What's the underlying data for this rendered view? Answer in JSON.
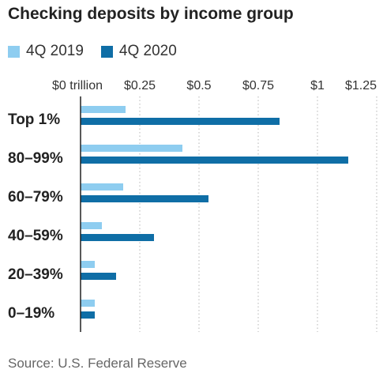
{
  "chart_data": {
    "type": "bar",
    "orientation": "horizontal",
    "title": "Checking deposits by income group",
    "source": "Source: U.S. Federal Reserve",
    "categories": [
      "Top 1%",
      "80–99%",
      "60–79%",
      "40–59%",
      "20–39%",
      "0–19%"
    ],
    "series": [
      {
        "name": "4Q 2019",
        "color": "#8ecdf0",
        "values": [
          0.19,
          0.43,
          0.18,
          0.09,
          0.06,
          0.06
        ]
      },
      {
        "name": "4Q 2020",
        "color": "#0f6ea6",
        "values": [
          0.84,
          1.13,
          0.54,
          0.31,
          0.15,
          0.06
        ]
      }
    ],
    "xlim": [
      0,
      1.25
    ],
    "xticks": [
      {
        "value": 0,
        "label": "$0 trillion"
      },
      {
        "value": 0.25,
        "label": "$0.25"
      },
      {
        "value": 0.5,
        "label": "$0.5"
      },
      {
        "value": 0.75,
        "label": "$0.75"
      },
      {
        "value": 1,
        "label": "$1"
      },
      {
        "value": 1.25,
        "label": "$1.25"
      }
    ],
    "xaxis_position": "top",
    "grid": "vertical-dotted",
    "legend_position": "top-left"
  }
}
